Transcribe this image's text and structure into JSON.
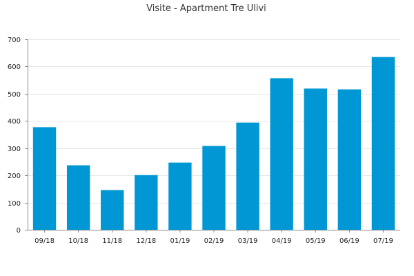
{
  "chart_data": {
    "type": "bar",
    "title": "Visite - Apartment Tre Ulivi",
    "xlabel": "",
    "ylabel": "",
    "categories": [
      "09/18",
      "10/18",
      "11/18",
      "12/18",
      "01/19",
      "02/19",
      "03/19",
      "04/19",
      "05/19",
      "06/19",
      "07/19"
    ],
    "values": [
      377,
      237,
      146,
      201,
      247,
      308,
      394,
      557,
      519,
      516,
      635
    ],
    "ylim": [
      0,
      700
    ],
    "yticks": [
      0,
      100,
      200,
      300,
      400,
      500,
      600,
      700
    ],
    "grid": true,
    "legend": "none",
    "colors": {
      "bar": "#0097d4",
      "grid": "#e6e6e6",
      "axis": "#888888"
    }
  }
}
